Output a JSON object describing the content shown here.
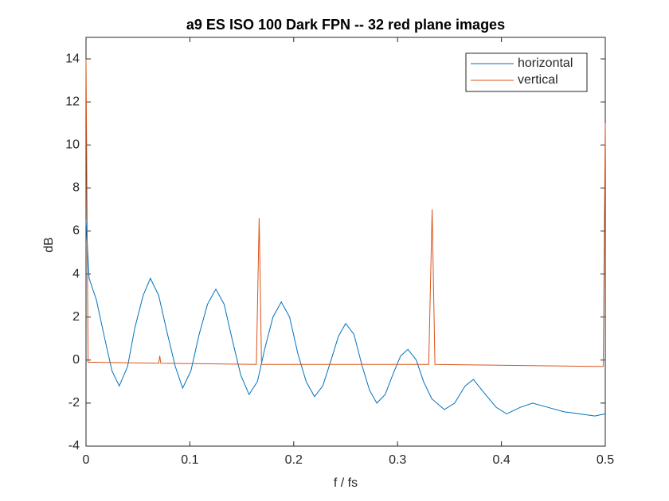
{
  "chart_data": {
    "type": "line",
    "title": "a9 ES ISO 100 Dark FPN -- 32 red plane images",
    "xlabel": "f / fs",
    "ylabel": "dB",
    "xlim": [
      0,
      0.5
    ],
    "xticks": [
      0,
      0.1,
      0.2,
      0.3,
      0.4,
      0.5
    ],
    "ylim": [
      -4,
      15
    ],
    "yticks": [
      -4,
      -2,
      0,
      2,
      4,
      6,
      8,
      10,
      12,
      14
    ],
    "legend": "northeast",
    "series": [
      {
        "name": "horizontal",
        "color": "#0072bd",
        "x": [
          0,
          0.003,
          0.01,
          0.018,
          0.025,
          0.032,
          0.04,
          0.047,
          0.055,
          0.062,
          0.07,
          0.078,
          0.086,
          0.093,
          0.101,
          0.109,
          0.117,
          0.125,
          0.133,
          0.141,
          0.149,
          0.157,
          0.165,
          0.172,
          0.18,
          0.188,
          0.196,
          0.204,
          0.212,
          0.22,
          0.228,
          0.236,
          0.243,
          0.25,
          0.258,
          0.266,
          0.273,
          0.28,
          0.288,
          0.296,
          0.303,
          0.31,
          0.318,
          0.325,
          0.333,
          0.345,
          0.355,
          0.365,
          0.373,
          0.383,
          0.395,
          0.405,
          0.418,
          0.43,
          0.445,
          0.46,
          0.475,
          0.49,
          0.5
        ],
        "values": [
          6.5,
          3.8,
          2.8,
          1.0,
          -0.5,
          -1.2,
          -0.3,
          1.5,
          3.0,
          3.8,
          3.0,
          1.3,
          -0.3,
          -1.3,
          -0.5,
          1.2,
          2.6,
          3.3,
          2.6,
          0.9,
          -0.7,
          -1.6,
          -1.0,
          0.5,
          2.0,
          2.7,
          2.0,
          0.3,
          -1.0,
          -1.7,
          -1.2,
          0,
          1.1,
          1.7,
          1.2,
          -0.3,
          -1.4,
          -2.0,
          -1.6,
          -0.6,
          0.2,
          0.5,
          0,
          -1.0,
          -1.8,
          -2.3,
          -2.0,
          -1.2,
          -0.9,
          -1.5,
          -2.2,
          -2.5,
          -2.2,
          -2.0,
          -2.2,
          -2.4,
          -2.5,
          -2.6,
          -2.5
        ]
      },
      {
        "name": "vertical",
        "color": "#d95319",
        "x": [
          0,
          0.002,
          0.01,
          0.07,
          0.071,
          0.072,
          0.164,
          0.1667,
          0.169,
          0.33,
          0.3333,
          0.336,
          0.498,
          0.5
        ],
        "values": [
          14,
          -0.1,
          -0.1,
          -0.15,
          0.2,
          -0.15,
          -0.2,
          6.6,
          -0.2,
          -0.2,
          7.0,
          -0.2,
          -0.3,
          11
        ]
      }
    ]
  }
}
